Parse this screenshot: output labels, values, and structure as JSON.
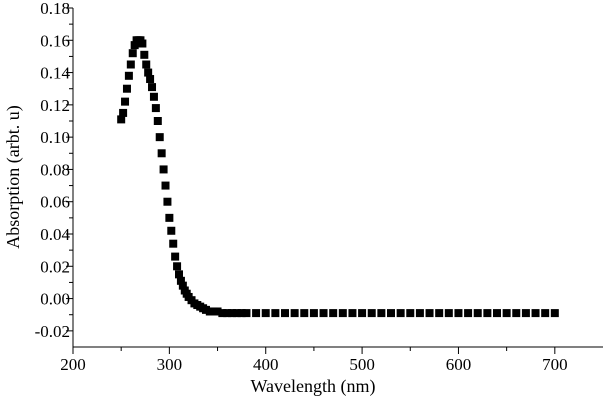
{
  "chart_data": {
    "type": "scatter",
    "title": "",
    "xlabel": "Wavelength (nm)",
    "ylabel": "Absorption (arbt. u)",
    "xlim": [
      200,
      750
    ],
    "ylim": [
      -0.03,
      0.18
    ],
    "xticks": [
      200,
      300,
      400,
      500,
      600,
      700
    ],
    "yticks": [
      -0.02,
      0.0,
      0.02,
      0.04,
      0.06,
      0.08,
      0.1,
      0.12,
      0.14,
      0.16,
      0.18
    ],
    "xtick_labels": [
      "200",
      "300",
      "400",
      "500",
      "600",
      "700"
    ],
    "ytick_labels": [
      "-0.02",
      "0.00",
      "0.02",
      "0.04",
      "0.06",
      "0.08",
      "0.10",
      "0.12",
      "0.14",
      "0.16",
      "0.18"
    ],
    "grid": false,
    "marker": "square",
    "series": [
      {
        "x": [
          250,
          252,
          254,
          256,
          258,
          260,
          262,
          264,
          266,
          268,
          270,
          272,
          274,
          276,
          278,
          280,
          282,
          284,
          286,
          288,
          290,
          292,
          294,
          296,
          298,
          300,
          302,
          304,
          306,
          308,
          310,
          312,
          314,
          316,
          318,
          320,
          323,
          326,
          329,
          332,
          335,
          338,
          342,
          346,
          350,
          355,
          360,
          365,
          370,
          375,
          380,
          390,
          400,
          410,
          420,
          430,
          440,
          450,
          460,
          470,
          480,
          490,
          500,
          510,
          520,
          530,
          540,
          550,
          560,
          570,
          580,
          590,
          600,
          610,
          620,
          630,
          640,
          650,
          660,
          670,
          680,
          690,
          700
        ],
        "y": [
          0.111,
          0.115,
          0.122,
          0.13,
          0.138,
          0.145,
          0.152,
          0.157,
          0.16,
          0.16,
          0.16,
          0.158,
          0.151,
          0.145,
          0.14,
          0.136,
          0.131,
          0.125,
          0.118,
          0.11,
          0.1,
          0.09,
          0.08,
          0.07,
          0.06,
          0.05,
          0.042,
          0.034,
          0.026,
          0.02,
          0.015,
          0.011,
          0.008,
          0.005,
          0.003,
          0.001,
          -0.001,
          -0.003,
          -0.004,
          -0.005,
          -0.006,
          -0.007,
          -0.008,
          -0.008,
          -0.008,
          -0.009,
          -0.009,
          -0.009,
          -0.009,
          -0.009,
          -0.009,
          -0.009,
          -0.009,
          -0.009,
          -0.009,
          -0.009,
          -0.009,
          -0.009,
          -0.009,
          -0.009,
          -0.009,
          -0.009,
          -0.009,
          -0.009,
          -0.009,
          -0.009,
          -0.009,
          -0.009,
          -0.009,
          -0.009,
          -0.009,
          -0.009,
          -0.009,
          -0.009,
          -0.009,
          -0.009,
          -0.009,
          -0.009,
          -0.009,
          -0.009,
          -0.009,
          -0.009,
          -0.009
        ]
      }
    ]
  }
}
